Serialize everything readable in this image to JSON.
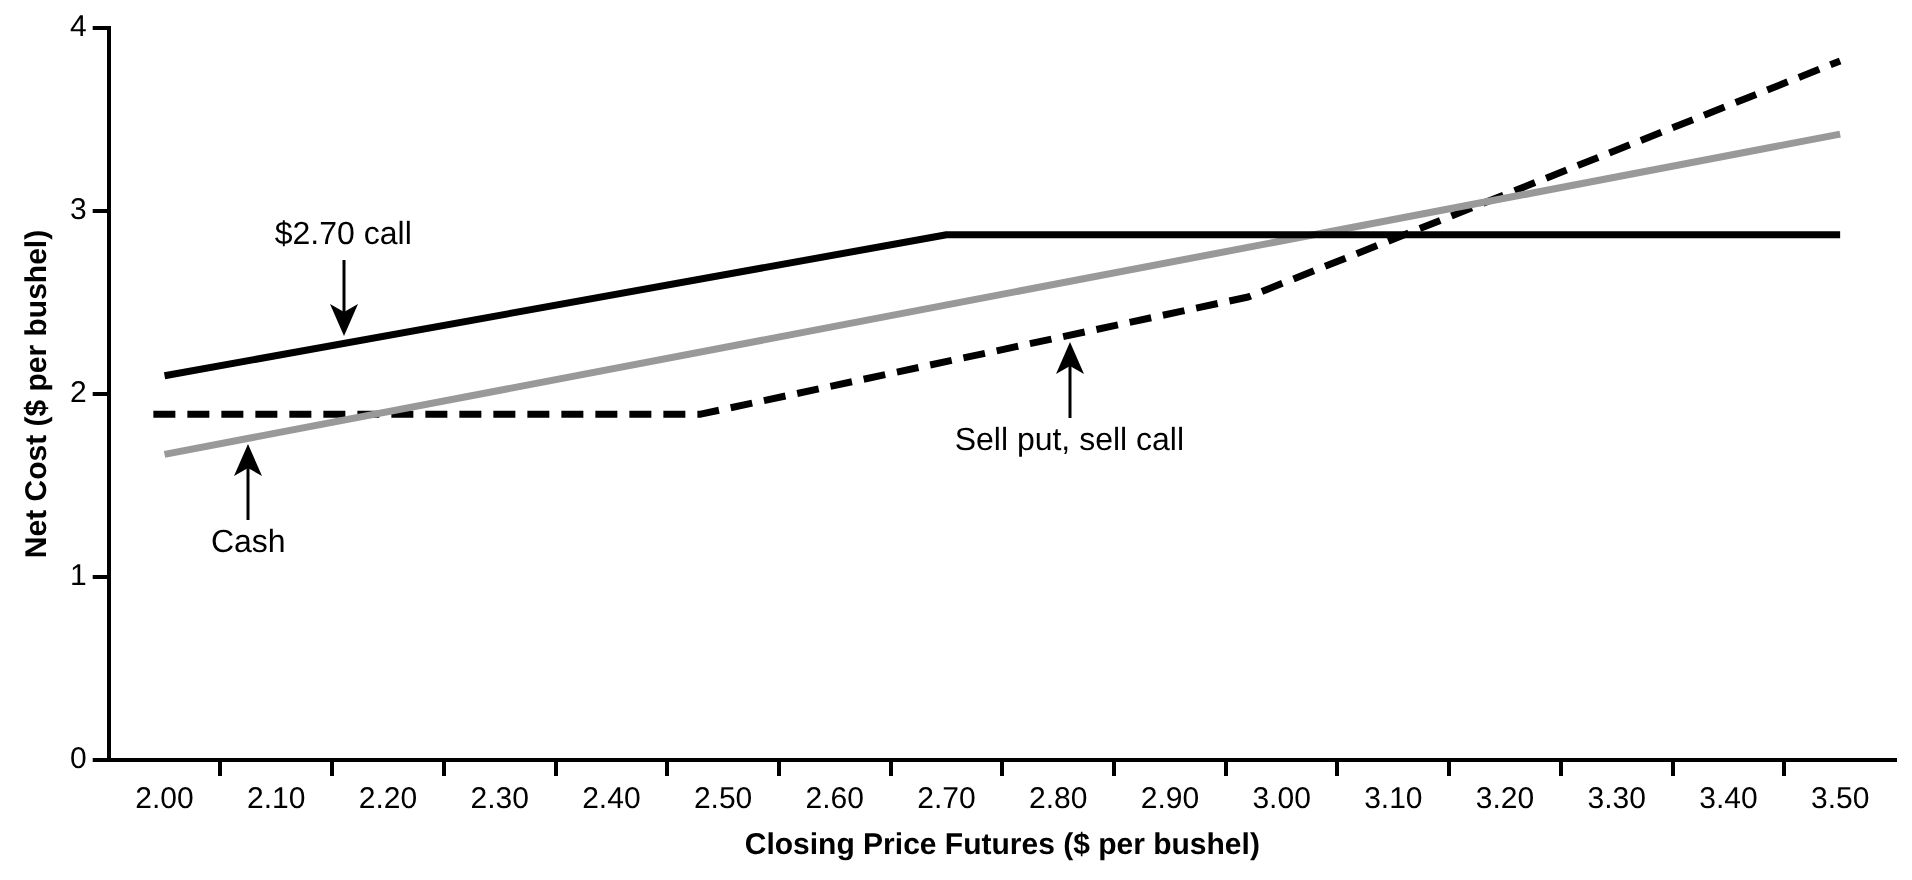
{
  "chart_data": {
    "type": "line",
    "xlabel": "Closing Price Futures ($ per bushel)",
    "ylabel": "Net Cost ($ per bushel)",
    "xlim": [
      1.95,
      3.55
    ],
    "ylim": [
      0,
      4
    ],
    "yticks": [
      0,
      1,
      2,
      3,
      4
    ],
    "xticks": [
      {
        "value": 2.0,
        "label": "2.00"
      },
      {
        "value": 2.05,
        "label": null
      },
      {
        "value": 2.1,
        "label": "2.10"
      },
      {
        "value": 2.15,
        "label": null
      },
      {
        "value": 2.2,
        "label": "2.20"
      },
      {
        "value": 2.25,
        "label": null
      },
      {
        "value": 2.3,
        "label": "2.30"
      },
      {
        "value": 2.35,
        "label": null
      },
      {
        "value": 2.4,
        "label": "2.40"
      },
      {
        "value": 2.45,
        "label": null
      },
      {
        "value": 2.5,
        "label": "2.50"
      },
      {
        "value": 2.55,
        "label": null
      },
      {
        "value": 2.6,
        "label": "2.60"
      },
      {
        "value": 2.65,
        "label": null
      },
      {
        "value": 2.7,
        "label": "2.70"
      },
      {
        "value": 2.75,
        "label": null
      },
      {
        "value": 2.8,
        "label": "2.80"
      },
      {
        "value": 2.85,
        "label": null
      },
      {
        "value": 2.9,
        "label": "2.90"
      },
      {
        "value": 2.95,
        "label": null
      },
      {
        "value": 3.0,
        "label": "3.00"
      },
      {
        "value": 3.05,
        "label": null
      },
      {
        "value": 3.1,
        "label": "3.10"
      },
      {
        "value": 3.15,
        "label": null
      },
      {
        "value": 3.2,
        "label": "3.20"
      },
      {
        "value": 3.25,
        "label": null
      },
      {
        "value": 3.3,
        "label": "3.30"
      },
      {
        "value": 3.35,
        "label": null
      },
      {
        "value": 3.4,
        "label": "3.40"
      },
      {
        "value": 3.45,
        "label": null
      },
      {
        "value": 3.5,
        "label": "3.50"
      }
    ],
    "grid": false,
    "legend": false,
    "marker": "none",
    "series": [
      {
        "color": "#000000",
        "line_style": "solid",
        "x": [
          2.0,
          2.7,
          3.5
        ],
        "values": [
          2.1,
          2.87,
          2.87
        ]
      },
      {
        "color": "#999999",
        "line_style": "solid",
        "x": [
          2.0,
          3.5
        ],
        "values": [
          1.67,
          3.42
        ]
      },
      {
        "color": "#000000",
        "line_style": "dashed",
        "x": [
          1.99,
          2.48,
          2.97,
          3.5
        ],
        "values": [
          1.89,
          1.89,
          2.53,
          3.82
        ]
      }
    ],
    "annotations": [
      {
        "text": "$2.70 call",
        "x": 2.16,
        "y": 2.28
      },
      {
        "text": "Cash",
        "x": 2.075,
        "y": 1.76
      },
      {
        "text": "Sell put, sell call",
        "x": 2.81,
        "y": 2.32
      }
    ]
  }
}
